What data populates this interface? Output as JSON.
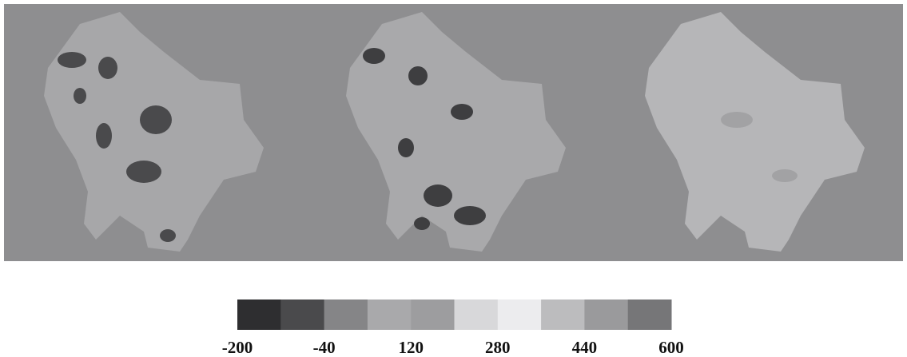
{
  "legend": {
    "ticks": [
      -200,
      -40,
      120,
      280,
      440,
      600
    ],
    "colors": [
      "#2e2e30",
      "#4a4a4c",
      "#858587",
      "#a9a9ab",
      "#9d9d9f",
      "#d8d8da",
      "#ececee",
      "#bcbcbe",
      "#9a9a9c",
      "#767678"
    ]
  }
}
